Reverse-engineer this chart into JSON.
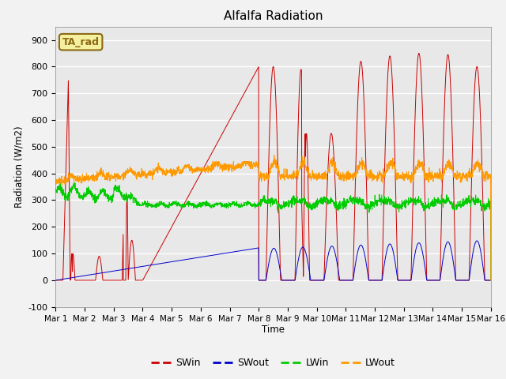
{
  "title": "Alfalfa Radiation",
  "ylabel": "Radiation (W/m2)",
  "xlabel": "Time",
  "ylim": [
    -100,
    950
  ],
  "xlim": [
    0,
    15
  ],
  "plot_bg_color": "#e8e8e8",
  "fig_bg_color": "#f2f2f2",
  "annotation_label": "TA_rad",
  "annotation_bg": "#f5f0a0",
  "annotation_border": "#8b6914",
  "legend_entries": [
    "SWin",
    "SWout",
    "LWin",
    "LWout"
  ],
  "line_colors": [
    "#cc0000",
    "#0000cc",
    "#00cc00",
    "#ff9900"
  ],
  "xtick_labels": [
    "Mar 1",
    "Mar 2",
    "Mar 3",
    "Mar 4",
    "Mar 5",
    "Mar 6",
    "Mar 7",
    "Mar 8",
    "Mar 9",
    "Mar 10",
    "Mar 11",
    "Mar 12",
    "Mar 13",
    "Mar 14",
    "Mar 15",
    "Mar 16"
  ],
  "xtick_positions": [
    0,
    1,
    2,
    3,
    4,
    5,
    6,
    7,
    8,
    9,
    10,
    11,
    12,
    13,
    14,
    15
  ],
  "ytick_labels": [
    "-100",
    "0",
    "100",
    "200",
    "300",
    "400",
    "500",
    "600",
    "700",
    "800",
    "900"
  ],
  "ytick_positions": [
    -100,
    0,
    100,
    200,
    300,
    400,
    500,
    600,
    700,
    800,
    900
  ]
}
